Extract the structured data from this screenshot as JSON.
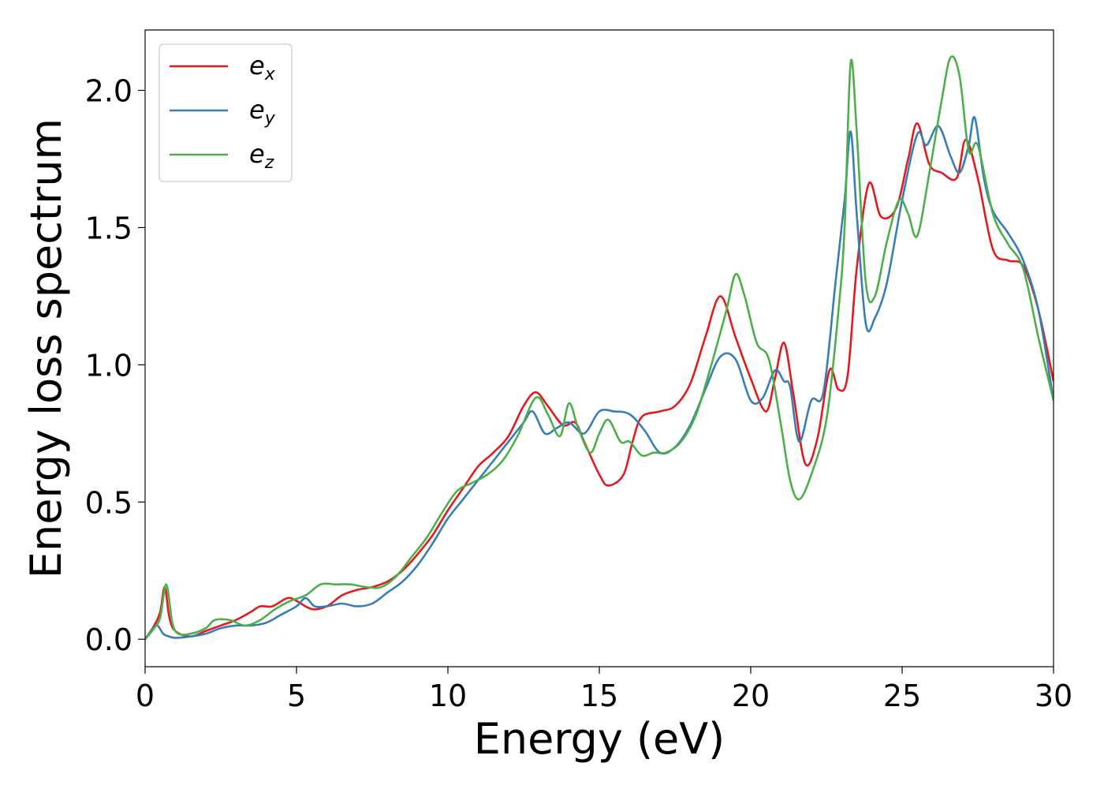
{
  "chart_data": {
    "type": "line",
    "xlabel": "Energy (eV)",
    "ylabel": "Energy loss spectrum",
    "xlim": [
      0,
      30
    ],
    "ylim": [
      -0.1,
      2.22
    ],
    "xticks": [
      0,
      5,
      10,
      15,
      20,
      25,
      30
    ],
    "xtick_labels": [
      "0",
      "5",
      "10",
      "15",
      "20",
      "25",
      "30"
    ],
    "yticks": [
      0.0,
      0.5,
      1.0,
      1.5,
      2.0
    ],
    "ytick_labels": [
      "0.0",
      "0.5",
      "1.0",
      "1.5",
      "2.0"
    ],
    "grid": false,
    "legend_position": "upper-left",
    "series": [
      {
        "name": "e_x",
        "label_main": "e",
        "label_sub": "x",
        "color": "#e41a1c",
        "x": [
          0,
          0.3,
          0.5,
          0.65,
          0.8,
          1.0,
          1.5,
          2.0,
          2.5,
          3.0,
          3.5,
          3.8,
          4.2,
          4.7,
          5.0,
          5.5,
          6.0,
          6.5,
          7.0,
          7.5,
          8.0,
          8.5,
          9.0,
          9.5,
          10.0,
          10.5,
          11.0,
          11.5,
          12.0,
          12.5,
          12.9,
          13.3,
          13.8,
          14.2,
          14.5,
          15.0,
          15.3,
          15.8,
          16.1,
          16.4,
          17.0,
          17.5,
          18.0,
          18.5,
          19.0,
          19.5,
          20.0,
          20.5,
          20.8,
          21.1,
          21.4,
          21.8,
          22.2,
          22.6,
          22.9,
          23.2,
          23.5,
          23.9,
          24.3,
          24.8,
          25.2,
          25.5,
          25.9,
          26.3,
          26.8,
          27.1,
          27.5,
          28.0,
          28.5,
          29.0,
          29.5,
          30.0
        ],
        "y": [
          0.0,
          0.05,
          0.1,
          0.19,
          0.08,
          0.03,
          0.01,
          0.03,
          0.05,
          0.07,
          0.1,
          0.12,
          0.12,
          0.15,
          0.14,
          0.11,
          0.12,
          0.16,
          0.18,
          0.19,
          0.21,
          0.25,
          0.31,
          0.38,
          0.47,
          0.55,
          0.63,
          0.68,
          0.74,
          0.85,
          0.9,
          0.85,
          0.78,
          0.79,
          0.72,
          0.6,
          0.56,
          0.6,
          0.72,
          0.81,
          0.83,
          0.85,
          0.93,
          1.1,
          1.25,
          1.1,
          0.95,
          0.83,
          0.95,
          1.08,
          0.9,
          0.64,
          0.73,
          0.98,
          0.91,
          0.96,
          1.35,
          1.66,
          1.54,
          1.57,
          1.75,
          1.88,
          1.73,
          1.7,
          1.68,
          1.82,
          1.68,
          1.42,
          1.38,
          1.36,
          1.2,
          0.94
        ]
      },
      {
        "name": "e_y",
        "label_main": "e",
        "label_sub": "y",
        "color": "#377eb8",
        "x": [
          0,
          0.2,
          0.4,
          0.6,
          0.8,
          1.0,
          1.5,
          2.0,
          2.5,
          3.0,
          3.5,
          4.0,
          4.5,
          5.0,
          5.3,
          5.6,
          6.0,
          6.5,
          7.0,
          7.5,
          8.0,
          8.5,
          9.0,
          9.5,
          10.0,
          10.5,
          11.0,
          11.5,
          12.0,
          12.5,
          12.8,
          13.2,
          13.6,
          14.0,
          14.5,
          15.0,
          15.5,
          16.0,
          16.5,
          17.0,
          17.5,
          18.0,
          18.5,
          19.0,
          19.5,
          20.0,
          20.4,
          20.8,
          21.1,
          21.3,
          21.6,
          22.0,
          22.4,
          22.8,
          23.1,
          23.3,
          23.5,
          23.8,
          24.1,
          24.5,
          25.0,
          25.5,
          25.8,
          26.2,
          26.6,
          26.9,
          27.2,
          27.4,
          27.7,
          28.0,
          28.5,
          29.0,
          29.5,
          30.0
        ],
        "y": [
          0.0,
          0.03,
          0.05,
          0.02,
          0.01,
          0.005,
          0.01,
          0.02,
          0.04,
          0.05,
          0.05,
          0.06,
          0.09,
          0.12,
          0.15,
          0.12,
          0.12,
          0.13,
          0.12,
          0.13,
          0.17,
          0.21,
          0.27,
          0.35,
          0.44,
          0.51,
          0.58,
          0.65,
          0.72,
          0.79,
          0.83,
          0.75,
          0.77,
          0.79,
          0.75,
          0.83,
          0.83,
          0.82,
          0.76,
          0.68,
          0.7,
          0.78,
          0.91,
          1.03,
          1.02,
          0.87,
          0.88,
          0.98,
          0.94,
          0.92,
          0.72,
          0.87,
          0.9,
          1.3,
          1.6,
          1.85,
          1.55,
          1.15,
          1.17,
          1.3,
          1.6,
          1.84,
          1.8,
          1.87,
          1.76,
          1.7,
          1.8,
          1.9,
          1.68,
          1.56,
          1.48,
          1.38,
          1.2,
          0.87
        ]
      },
      {
        "name": "e_z",
        "label_main": "e",
        "label_sub": "z",
        "color": "#4daf4a",
        "x": [
          0,
          0.3,
          0.5,
          0.7,
          0.9,
          1.1,
          1.5,
          2.0,
          2.3,
          2.8,
          3.3,
          3.8,
          4.3,
          4.8,
          5.3,
          5.8,
          6.3,
          6.8,
          7.3,
          7.8,
          8.3,
          8.8,
          9.3,
          9.8,
          10.3,
          10.8,
          11.3,
          11.8,
          12.3,
          12.9,
          13.3,
          13.7,
          14.0,
          14.3,
          14.7,
          15.0,
          15.3,
          15.7,
          16.0,
          16.4,
          16.8,
          17.2,
          17.7,
          18.2,
          18.7,
          19.2,
          19.5,
          19.8,
          20.2,
          20.6,
          21.0,
          21.3,
          21.6,
          22.0,
          22.5,
          22.9,
          23.1,
          23.3,
          23.5,
          23.8,
          24.1,
          24.5,
          24.9,
          25.2,
          25.5,
          25.9,
          26.3,
          26.6,
          26.9,
          27.2,
          27.5,
          28.0,
          28.5,
          29.0,
          29.5,
          30.0
        ],
        "y": [
          0.0,
          0.04,
          0.08,
          0.2,
          0.06,
          0.02,
          0.02,
          0.04,
          0.07,
          0.07,
          0.05,
          0.07,
          0.11,
          0.14,
          0.16,
          0.2,
          0.2,
          0.2,
          0.19,
          0.19,
          0.23,
          0.3,
          0.37,
          0.46,
          0.54,
          0.57,
          0.6,
          0.65,
          0.74,
          0.88,
          0.82,
          0.74,
          0.86,
          0.77,
          0.68,
          0.75,
          0.8,
          0.72,
          0.72,
          0.67,
          0.68,
          0.68,
          0.72,
          0.82,
          1.0,
          1.2,
          1.33,
          1.25,
          1.08,
          1.02,
          0.78,
          0.58,
          0.51,
          0.6,
          0.8,
          1.2,
          1.5,
          2.1,
          1.85,
          1.3,
          1.25,
          1.45,
          1.6,
          1.55,
          1.47,
          1.7,
          1.96,
          2.12,
          2.05,
          1.78,
          1.8,
          1.55,
          1.44,
          1.35,
          1.1,
          0.87
        ]
      }
    ]
  }
}
